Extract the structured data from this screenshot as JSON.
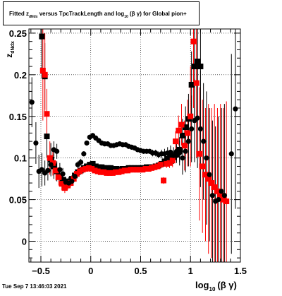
{
  "title": {
    "prefix": "Fitted  z",
    "z_sub": "dNdx",
    "middle": "  versus TpcTrackLength and log",
    "log_sub": "10",
    "suffix": "(β  γ) for Global pion+"
  },
  "footer": {
    "date": "Tue Sep  7 13:46:03 2021"
  },
  "axes": {
    "ylabel": {
      "main": "z",
      "sub": "dNdx"
    },
    "xlabel": {
      "main": "log",
      "sub": "10",
      "suffix": "(β γ)"
    }
  },
  "chart_data": {
    "type": "scatter",
    "xlim": [
      -0.62,
      1.5
    ],
    "ylim": [
      -0.025,
      0.255
    ],
    "x_ticks": [
      -0.5,
      0,
      0.5,
      1,
      1.5
    ],
    "x_tick_labels": [
      "−0.5",
      "0",
      "0.5",
      "1",
      "1.5"
    ],
    "y_ticks": [
      0,
      0.05,
      0.1,
      0.15,
      0.2,
      0.25
    ],
    "y_tick_labels": [
      "0",
      "0.05",
      "0.1",
      "0.15",
      "0.2",
      "0.25"
    ],
    "grid": true,
    "series": [
      {
        "marker": "square",
        "color": "#000000",
        "points": [
          [
            -0.49,
            0.246,
            0.05
          ],
          [
            -0.46,
            0.198,
            0.04
          ],
          [
            -0.44,
            0.126,
            0.025
          ],
          [
            -0.4,
            0.098,
            0.02
          ],
          [
            -0.37,
            0.09,
            0.015
          ],
          [
            -0.34,
            0.084,
            0.012
          ],
          [
            -0.31,
            0.078,
            0.01
          ],
          [
            -0.28,
            0.074,
            0.008
          ],
          [
            -0.25,
            0.071,
            0.006
          ],
          [
            -0.22,
            0.072,
            0.005
          ],
          [
            -0.19,
            0.075,
            0.004
          ],
          [
            -0.16,
            0.079,
            0.004
          ],
          [
            -0.13,
            0.083,
            0.003
          ],
          [
            -0.1,
            0.085,
            0.003
          ],
          [
            -0.07,
            0.088,
            0.003
          ],
          [
            -0.04,
            0.09,
            0.003
          ],
          [
            -0.01,
            0.092,
            0.002
          ],
          [
            0.02,
            0.093,
            0.002
          ],
          [
            0.05,
            0.09,
            0.002
          ],
          [
            0.08,
            0.089,
            0.002
          ],
          [
            0.11,
            0.089,
            0.002
          ],
          [
            0.14,
            0.088,
            0.002
          ],
          [
            0.17,
            0.088,
            0.002
          ],
          [
            0.2,
            0.088,
            0.002
          ],
          [
            0.23,
            0.087,
            0.002
          ],
          [
            0.26,
            0.087,
            0.002
          ],
          [
            0.29,
            0.086,
            0.002
          ],
          [
            0.32,
            0.087,
            0.002
          ],
          [
            0.35,
            0.087,
            0.002
          ],
          [
            0.38,
            0.088,
            0.002
          ],
          [
            0.41,
            0.088,
            0.002
          ],
          [
            0.44,
            0.088,
            0.002
          ],
          [
            0.47,
            0.088,
            0.002
          ],
          [
            0.5,
            0.088,
            0.002
          ],
          [
            0.53,
            0.088,
            0.002
          ],
          [
            0.56,
            0.089,
            0.002
          ],
          [
            0.59,
            0.089,
            0.002
          ],
          [
            0.62,
            0.089,
            0.002
          ],
          [
            0.65,
            0.09,
            0.002
          ],
          [
            0.68,
            0.091,
            0.002
          ],
          [
            0.71,
            0.093,
            0.002
          ],
          [
            0.74,
            0.096,
            0.003
          ],
          [
            0.77,
            0.099,
            0.004
          ],
          [
            0.8,
            0.101,
            0.005
          ],
          [
            0.83,
            0.101,
            0.008
          ],
          [
            0.86,
            0.104,
            0.01
          ],
          [
            0.89,
            0.11,
            0.015
          ],
          [
            0.92,
            0.127,
            0.02
          ],
          [
            0.95,
            0.137,
            0.025
          ],
          [
            0.98,
            0.147,
            0.03
          ],
          [
            1.01,
            0.188,
            0.04
          ],
          [
            1.04,
            0.21,
            0.06
          ],
          [
            1.07,
            0.216,
            0.08
          ],
          [
            1.1,
            0.21,
            0.09
          ]
        ]
      },
      {
        "marker": "square",
        "color": "#ff0000",
        "points": [
          [
            -0.48,
            0.205,
            0.06
          ],
          [
            -0.46,
            0.2,
            0.05
          ],
          [
            -0.44,
            0.153,
            0.03
          ],
          [
            -0.41,
            0.1,
            0.02
          ],
          [
            -0.38,
            0.094,
            0.015
          ],
          [
            -0.35,
            0.085,
            0.012
          ],
          [
            -0.32,
            0.077,
            0.01
          ],
          [
            -0.29,
            0.069,
            0.008
          ],
          [
            -0.26,
            0.064,
            0.006
          ],
          [
            -0.23,
            0.067,
            0.005
          ],
          [
            -0.2,
            0.07,
            0.004
          ],
          [
            -0.17,
            0.075,
            0.004
          ],
          [
            -0.14,
            0.081,
            0.003
          ],
          [
            -0.11,
            0.084,
            0.003
          ],
          [
            -0.08,
            0.086,
            0.003
          ],
          [
            -0.05,
            0.087,
            0.003
          ],
          [
            -0.02,
            0.088,
            0.002
          ],
          [
            0.01,
            0.087,
            0.002
          ],
          [
            0.04,
            0.085,
            0.002
          ],
          [
            0.07,
            0.084,
            0.002
          ],
          [
            0.1,
            0.083,
            0.002
          ],
          [
            0.13,
            0.083,
            0.002
          ],
          [
            0.16,
            0.082,
            0.002
          ],
          [
            0.19,
            0.082,
            0.002
          ],
          [
            0.22,
            0.082,
            0.002
          ],
          [
            0.25,
            0.083,
            0.002
          ],
          [
            0.28,
            0.083,
            0.002
          ],
          [
            0.31,
            0.084,
            0.002
          ],
          [
            0.34,
            0.085,
            0.002
          ],
          [
            0.37,
            0.085,
            0.002
          ],
          [
            0.4,
            0.086,
            0.002
          ],
          [
            0.43,
            0.086,
            0.002
          ],
          [
            0.46,
            0.086,
            0.002
          ],
          [
            0.49,
            0.086,
            0.002
          ],
          [
            0.52,
            0.086,
            0.002
          ],
          [
            0.55,
            0.087,
            0.002
          ],
          [
            0.58,
            0.087,
            0.002
          ],
          [
            0.61,
            0.088,
            0.002
          ],
          [
            0.64,
            0.089,
            0.002
          ],
          [
            0.67,
            0.09,
            0.003
          ],
          [
            0.7,
            0.092,
            0.003
          ],
          [
            0.73,
            0.073,
            0.004
          ],
          [
            0.76,
            0.093,
            0.005
          ],
          [
            0.79,
            0.094,
            0.006
          ],
          [
            0.82,
            0.097,
            0.008
          ],
          [
            0.85,
            0.12,
            0.012
          ],
          [
            0.88,
            0.133,
            0.018
          ],
          [
            0.91,
            0.14,
            0.025
          ],
          [
            0.94,
            0.115,
            0.03
          ],
          [
            0.97,
            0.13,
            0.04
          ],
          [
            1,
            0.15,
            0.06
          ],
          [
            1.03,
            0.24,
            0.08
          ],
          [
            1.06,
            0.19,
            0.09
          ],
          [
            1.09,
            0.105,
            0.08
          ],
          [
            1.12,
            0.09,
            0.08
          ],
          [
            1.15,
            0.08,
            0.08
          ],
          [
            1.18,
            0.075,
            0.09
          ],
          [
            1.21,
            0.07,
            0.09
          ],
          [
            1.24,
            0.065,
            0.1
          ],
          [
            1.27,
            0.06,
            0.1
          ],
          [
            1.3,
            0.055,
            0.11
          ],
          [
            1.33,
            0.05,
            0.11
          ],
          [
            1.36,
            0.048,
            0.12
          ]
        ]
      },
      {
        "marker": "circle",
        "color": "#000000",
        "points": [
          [
            -0.59,
            0.167,
            0.03
          ],
          [
            -0.55,
            0.118,
            0.025
          ],
          [
            -0.52,
            0.084,
            0.02
          ],
          [
            -0.49,
            0.086,
            0.02
          ],
          [
            -0.46,
            0.082,
            0.015
          ],
          [
            -0.43,
            0.085,
            0.012
          ],
          [
            -0.4,
            0.092,
            0.01
          ],
          [
            -0.37,
            0.11,
            0.01
          ],
          [
            -0.34,
            0.108,
            0.009
          ],
          [
            -0.31,
            0.086,
            0.008
          ],
          [
            -0.28,
            0.081,
            0.007
          ],
          [
            -0.25,
            0.071,
            0.006
          ],
          [
            -0.22,
            0.07,
            0.005
          ],
          [
            -0.19,
            0.072,
            0.005
          ],
          [
            -0.16,
            0.078,
            0.004
          ],
          [
            -0.13,
            0.092,
            0.004
          ],
          [
            -0.1,
            0.095,
            0.004
          ],
          [
            -0.07,
            0.105,
            0.003
          ],
          [
            -0.04,
            0.118,
            0.003
          ],
          [
            -0.01,
            0.125,
            0.003
          ],
          [
            0.02,
            0.127,
            0.003
          ],
          [
            0.05,
            0.124,
            0.003
          ],
          [
            0.08,
            0.121,
            0.003
          ],
          [
            0.11,
            0.118,
            0.003
          ],
          [
            0.14,
            0.117,
            0.003
          ],
          [
            0.17,
            0.117,
            0.003
          ],
          [
            0.2,
            0.115,
            0.003
          ],
          [
            0.23,
            0.115,
            0.003
          ],
          [
            0.26,
            0.116,
            0.003
          ],
          [
            0.29,
            0.117,
            0.003
          ],
          [
            0.32,
            0.116,
            0.003
          ],
          [
            0.35,
            0.116,
            0.003
          ],
          [
            0.38,
            0.114,
            0.003
          ],
          [
            0.41,
            0.113,
            0.003
          ],
          [
            0.44,
            0.112,
            0.003
          ],
          [
            0.47,
            0.11,
            0.003
          ],
          [
            0.5,
            0.109,
            0.003
          ],
          [
            0.53,
            0.108,
            0.003
          ],
          [
            0.56,
            0.108,
            0.003
          ],
          [
            0.59,
            0.108,
            0.003
          ],
          [
            0.62,
            0.106,
            0.004
          ],
          [
            0.65,
            0.106,
            0.004
          ],
          [
            0.68,
            0.104,
            0.004
          ],
          [
            0.71,
            0.105,
            0.005
          ],
          [
            0.74,
            0.105,
            0.006
          ],
          [
            0.77,
            0.106,
            0.007
          ],
          [
            0.8,
            0.107,
            0.008
          ],
          [
            0.83,
            0.103,
            0.01
          ],
          [
            0.86,
            0.108,
            0.012
          ],
          [
            0.89,
            0.106,
            0.015
          ],
          [
            0.92,
            0.1,
            0.02
          ],
          [
            0.95,
            0.108,
            0.025
          ],
          [
            0.98,
            0.12,
            0.03
          ],
          [
            1.01,
            0.135,
            0.04
          ],
          [
            1.04,
            0.145,
            0.05
          ],
          [
            1.07,
            0.148,
            0.06
          ],
          [
            1.1,
            0.135,
            0.07
          ],
          [
            1.13,
            0.12,
            0.07
          ],
          [
            1.16,
            0.1,
            0.08
          ],
          [
            1.19,
            0.08,
            0.08
          ],
          [
            1.22,
            0.055,
            0.09
          ],
          [
            1.25,
            0.048,
            0.09
          ],
          [
            1.28,
            0.05,
            0.1
          ],
          [
            1.31,
            0.06,
            0.1
          ],
          [
            1.34,
            0.055,
            0.11
          ],
          [
            1.41,
            0.105,
            0.12
          ],
          [
            1.45,
            0.159,
            0.12
          ]
        ]
      }
    ]
  }
}
